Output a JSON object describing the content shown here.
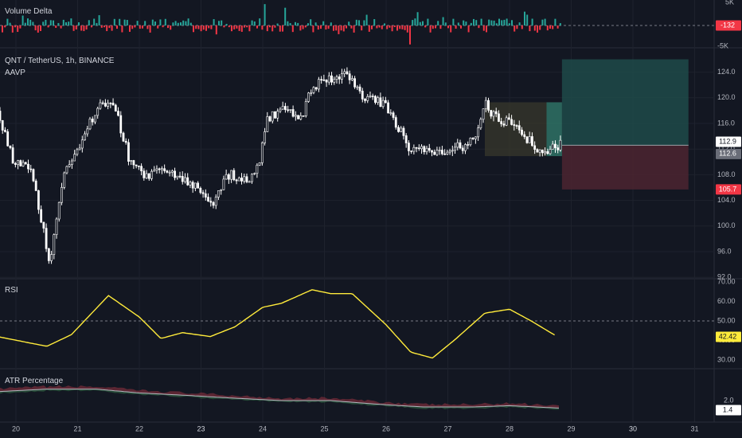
{
  "panes": {
    "volume_delta": {
      "label": "Volume Delta",
      "ticks": [
        "5K",
        "-5K"
      ],
      "badge": "-132",
      "badge_color": "#f23645"
    },
    "main": {
      "symbol_line": "QNT / TetherUS, 1h, BINANCE",
      "indicator": "AAVP",
      "ticks": [
        "124.0",
        "120.0",
        "116.0",
        "112.0",
        "108.0",
        "104.0",
        "100.0",
        "96.0",
        "92.0"
      ],
      "price_badges": [
        {
          "text": "112.9",
          "kind": "last",
          "value": 112.9
        },
        {
          "text": "112.6",
          "kind": "entry",
          "value": 112.6
        },
        {
          "text": "105.7",
          "kind": "stop",
          "value": 105.7
        }
      ]
    },
    "rsi": {
      "label": "RSI",
      "ticks": [
        "70.00",
        "60.00",
        "50.00",
        "40.00",
        "30.00"
      ],
      "badge": "42.42",
      "line_color": "#ffeb3b"
    },
    "atr": {
      "label": "ATR Percentage",
      "ticks": [
        "2.0"
      ],
      "badge": "1.4"
    }
  },
  "time_axis": {
    "ticks": [
      "20",
      "21",
      "22",
      "23",
      "24",
      "25",
      "26",
      "27",
      "28",
      "29",
      "30",
      "31"
    ]
  },
  "colors": {
    "up": "#ffffff",
    "down": "#ffffff",
    "delta_up": "#26a69a",
    "delta_down": "#f23645",
    "target_zone": "#1e4a49",
    "stop_zone": "#4c2430",
    "avwap_box": "#3a3a2c"
  },
  "chart_data": {
    "type": "candlestick",
    "symbol": "QNT / TetherUS",
    "interval": "1h",
    "exchange": "BINANCE",
    "x_range_days": [
      20,
      31
    ],
    "price_range": [
      92,
      126
    ],
    "price_path": [
      {
        "day": 19.7,
        "price": 117.5
      },
      {
        "day": 19.95,
        "price": 110.5
      },
      {
        "day": 20.25,
        "price": 108.5
      },
      {
        "day": 20.55,
        "price": 94.5
      },
      {
        "day": 20.8,
        "price": 108.5
      },
      {
        "day": 21.05,
        "price": 113.0
      },
      {
        "day": 21.35,
        "price": 119.0
      },
      {
        "day": 21.6,
        "price": 118.5
      },
      {
        "day": 21.85,
        "price": 110.0
      },
      {
        "day": 22.1,
        "price": 108.0
      },
      {
        "day": 22.5,
        "price": 108.5
      },
      {
        "day": 22.9,
        "price": 106.5
      },
      {
        "day": 23.15,
        "price": 103.0
      },
      {
        "day": 23.45,
        "price": 108.0
      },
      {
        "day": 23.8,
        "price": 107.0
      },
      {
        "day": 23.95,
        "price": 110.0
      },
      {
        "day": 24.05,
        "price": 116.5
      },
      {
        "day": 24.35,
        "price": 118.5
      },
      {
        "day": 24.6,
        "price": 116.0
      },
      {
        "day": 24.8,
        "price": 122.0
      },
      {
        "day": 25.05,
        "price": 122.5
      },
      {
        "day": 25.3,
        "price": 124.0
      },
      {
        "day": 25.6,
        "price": 120.5
      },
      {
        "day": 26.0,
        "price": 119.0
      },
      {
        "day": 26.35,
        "price": 112.5
      },
      {
        "day": 26.7,
        "price": 111.5
      },
      {
        "day": 27.0,
        "price": 112.0
      },
      {
        "day": 27.25,
        "price": 112.5
      },
      {
        "day": 27.45,
        "price": 114.5
      },
      {
        "day": 27.6,
        "price": 119.0
      },
      {
        "day": 27.8,
        "price": 116.5
      },
      {
        "day": 28.05,
        "price": 116.5
      },
      {
        "day": 28.3,
        "price": 113.5
      },
      {
        "day": 28.55,
        "price": 111.0
      },
      {
        "day": 28.7,
        "price": 112.0
      },
      {
        "day": 28.85,
        "price": 113.0
      }
    ],
    "rsi_range": [
      25,
      72
    ],
    "rsi_path": [
      {
        "day": 19.7,
        "rsi": 42.0
      },
      {
        "day": 20.5,
        "rsi": 37.0
      },
      {
        "day": 20.9,
        "rsi": 43.0
      },
      {
        "day": 21.5,
        "rsi": 63.0
      },
      {
        "day": 22.0,
        "rsi": 52.0
      },
      {
        "day": 22.35,
        "rsi": 41.0
      },
      {
        "day": 22.7,
        "rsi": 44.0
      },
      {
        "day": 23.15,
        "rsi": 42.0
      },
      {
        "day": 23.55,
        "rsi": 47.0
      },
      {
        "day": 24.0,
        "rsi": 57.0
      },
      {
        "day": 24.3,
        "rsi": 59.0
      },
      {
        "day": 24.8,
        "rsi": 66.0
      },
      {
        "day": 25.1,
        "rsi": 64.0
      },
      {
        "day": 25.45,
        "rsi": 64.0
      },
      {
        "day": 26.0,
        "rsi": 48.0
      },
      {
        "day": 26.4,
        "rsi": 34.0
      },
      {
        "day": 26.75,
        "rsi": 31.0
      },
      {
        "day": 27.1,
        "rsi": 40.0
      },
      {
        "day": 27.6,
        "rsi": 54.0
      },
      {
        "day": 28.0,
        "rsi": 56.0
      },
      {
        "day": 28.35,
        "rsi": 50.0
      },
      {
        "day": 28.75,
        "rsi": 42.42
      }
    ],
    "atr_range": [
      1.0,
      3.5
    ],
    "atr_path": [
      {
        "day": 19.7,
        "atr": 2.7
      },
      {
        "day": 20.5,
        "atr": 2.9
      },
      {
        "day": 21.3,
        "atr": 2.9
      },
      {
        "day": 22.0,
        "atr": 2.6
      },
      {
        "day": 22.8,
        "atr": 2.4
      },
      {
        "day": 23.5,
        "atr": 2.2
      },
      {
        "day": 24.3,
        "atr": 2.0
      },
      {
        "day": 25.1,
        "atr": 2.0
      },
      {
        "day": 25.9,
        "atr": 1.7
      },
      {
        "day": 26.6,
        "atr": 1.5
      },
      {
        "day": 27.4,
        "atr": 1.5
      },
      {
        "day": 28.0,
        "atr": 1.6
      },
      {
        "day": 28.85,
        "atr": 1.4
      }
    ],
    "long_position": {
      "entry": 112.6,
      "target": 126.0,
      "stop": 105.7,
      "from_day": 28.85,
      "to_day": 30.9
    },
    "avwap_box": {
      "from_day": 27.6,
      "to_day": 28.85,
      "top": 119.3,
      "bottom": 110.9
    },
    "rsi_midline": 50,
    "grid": true
  }
}
